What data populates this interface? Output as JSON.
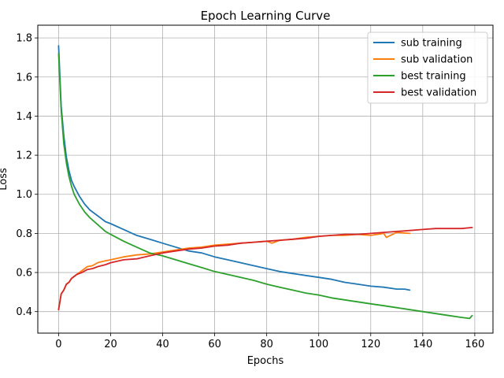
{
  "chart_data": {
    "type": "line",
    "title": "Epoch Learning Curve",
    "xlabel": "Epochs",
    "ylabel": "Loss",
    "xlim": [
      -8,
      167
    ],
    "ylim": [
      0.29,
      1.865
    ],
    "xticks": [
      0,
      20,
      40,
      60,
      80,
      100,
      120,
      140,
      160
    ],
    "yticks": [
      0.4,
      0.6,
      0.8,
      1.0,
      1.2,
      1.4,
      1.6,
      1.8
    ],
    "grid": true,
    "legend_position": "top-right",
    "series": [
      {
        "name": "sub training",
        "color": "#1f77b4",
        "x": [
          0,
          1,
          2,
          3,
          4,
          5,
          6,
          8,
          10,
          12,
          15,
          18,
          20,
          25,
          30,
          35,
          40,
          45,
          50,
          55,
          60,
          65,
          70,
          75,
          80,
          85,
          90,
          95,
          100,
          105,
          110,
          115,
          120,
          125,
          130,
          133,
          135
        ],
        "y": [
          1.76,
          1.45,
          1.3,
          1.19,
          1.12,
          1.07,
          1.04,
          0.99,
          0.95,
          0.92,
          0.89,
          0.86,
          0.85,
          0.82,
          0.79,
          0.77,
          0.75,
          0.73,
          0.71,
          0.7,
          0.68,
          0.665,
          0.65,
          0.635,
          0.62,
          0.605,
          0.595,
          0.585,
          0.575,
          0.565,
          0.55,
          0.54,
          0.53,
          0.525,
          0.515,
          0.515,
          0.51
        ]
      },
      {
        "name": "sub validation",
        "color": "#ff7f0e",
        "x": [
          0,
          1,
          2,
          3,
          4,
          5,
          7,
          9,
          11,
          13,
          15,
          18,
          20,
          25,
          30,
          35,
          40,
          45,
          50,
          55,
          60,
          65,
          70,
          75,
          80,
          82,
          85,
          90,
          95,
          100,
          105,
          110,
          115,
          120,
          125,
          126,
          130,
          135
        ],
        "y": [
          0.41,
          0.49,
          0.51,
          0.54,
          0.55,
          0.57,
          0.59,
          0.61,
          0.63,
          0.635,
          0.65,
          0.66,
          0.665,
          0.68,
          0.69,
          0.695,
          0.705,
          0.715,
          0.725,
          0.73,
          0.74,
          0.745,
          0.75,
          0.755,
          0.76,
          0.75,
          0.765,
          0.77,
          0.78,
          0.785,
          0.79,
          0.79,
          0.795,
          0.79,
          0.8,
          0.78,
          0.805,
          0.8
        ]
      },
      {
        "name": "best training",
        "color": "#2ca02c",
        "x": [
          0,
          1,
          2,
          3,
          4,
          5,
          6,
          8,
          10,
          12,
          15,
          18,
          20,
          25,
          30,
          35,
          40,
          45,
          50,
          55,
          60,
          65,
          70,
          75,
          80,
          85,
          90,
          95,
          100,
          105,
          110,
          115,
          120,
          125,
          130,
          135,
          140,
          145,
          150,
          155,
          158,
          159
        ],
        "y": [
          1.72,
          1.43,
          1.26,
          1.16,
          1.09,
          1.04,
          1.0,
          0.95,
          0.91,
          0.88,
          0.845,
          0.81,
          0.795,
          0.76,
          0.73,
          0.7,
          0.685,
          0.665,
          0.645,
          0.625,
          0.605,
          0.59,
          0.575,
          0.56,
          0.54,
          0.525,
          0.51,
          0.495,
          0.485,
          0.47,
          0.46,
          0.45,
          0.44,
          0.43,
          0.42,
          0.41,
          0.4,
          0.39,
          0.38,
          0.37,
          0.365,
          0.38
        ]
      },
      {
        "name": "best validation",
        "color": "#d62728",
        "x": [
          0,
          1,
          2,
          3,
          4,
          5,
          7,
          9,
          11,
          13,
          15,
          18,
          20,
          25,
          30,
          35,
          40,
          45,
          50,
          55,
          60,
          65,
          70,
          75,
          80,
          85,
          90,
          95,
          100,
          105,
          110,
          115,
          120,
          125,
          130,
          135,
          140,
          145,
          150,
          155,
          159
        ],
        "y": [
          0.41,
          0.49,
          0.51,
          0.54,
          0.55,
          0.57,
          0.59,
          0.6,
          0.615,
          0.62,
          0.63,
          0.64,
          0.65,
          0.665,
          0.67,
          0.685,
          0.7,
          0.71,
          0.72,
          0.725,
          0.735,
          0.74,
          0.75,
          0.755,
          0.76,
          0.765,
          0.77,
          0.775,
          0.785,
          0.79,
          0.795,
          0.795,
          0.8,
          0.805,
          0.81,
          0.815,
          0.82,
          0.825,
          0.825,
          0.825,
          0.83
        ]
      }
    ]
  }
}
